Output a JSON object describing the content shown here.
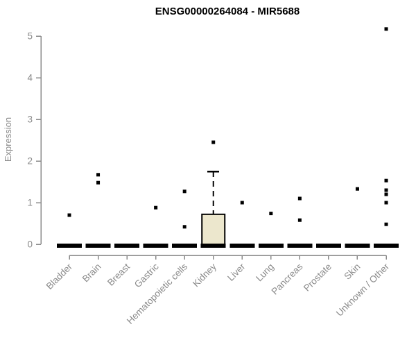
{
  "chart_data": {
    "type": "boxplot",
    "title": "ENSG00000264084 - MIR5688",
    "ylabel": "Expression",
    "xlabel": "",
    "ylim": [
      0,
      5
    ],
    "yticks": [
      0,
      1,
      2,
      3,
      4,
      5
    ],
    "categories": [
      "Bladder",
      "Brain",
      "Breast",
      "Gastric",
      "Hematopoietic cells",
      "Kidney",
      "Liver",
      "Lung",
      "Pancreas",
      "Prostate",
      "Skin",
      "Unknown / Other"
    ],
    "boxes": [
      {
        "category": "Bladder",
        "q1": 0,
        "median": 0,
        "q3": 0,
        "whisker_low": 0,
        "whisker_high": 0,
        "outliers": [
          0.7
        ]
      },
      {
        "category": "Brain",
        "q1": 0,
        "median": 0,
        "q3": 0,
        "whisker_low": 0,
        "whisker_high": 0,
        "outliers": [
          1.67,
          1.48
        ]
      },
      {
        "category": "Breast",
        "q1": 0,
        "median": 0,
        "q3": 0,
        "whisker_low": 0,
        "whisker_high": 0,
        "outliers": []
      },
      {
        "category": "Gastric",
        "q1": 0,
        "median": 0,
        "q3": 0,
        "whisker_low": 0,
        "whisker_high": 0,
        "outliers": [
          0.88
        ]
      },
      {
        "category": "Hematopoietic cells",
        "q1": 0,
        "median": 0,
        "q3": 0,
        "whisker_low": 0,
        "whisker_high": 0,
        "outliers": [
          1.27,
          0.42
        ]
      },
      {
        "category": "Kidney",
        "q1": 0,
        "median": 0,
        "q3": 0.72,
        "whisker_low": 0,
        "whisker_high": 1.75,
        "outliers": [
          2.45
        ]
      },
      {
        "category": "Liver",
        "q1": 0,
        "median": 0,
        "q3": 0,
        "whisker_low": 0,
        "whisker_high": 0,
        "outliers": [
          1.0
        ]
      },
      {
        "category": "Lung",
        "q1": 0,
        "median": 0,
        "q3": 0,
        "whisker_low": 0,
        "whisker_high": 0,
        "outliers": [
          0.74
        ]
      },
      {
        "category": "Pancreas",
        "q1": 0,
        "median": 0,
        "q3": 0,
        "whisker_low": 0,
        "whisker_high": 0,
        "outliers": [
          1.1,
          0.58
        ]
      },
      {
        "category": "Prostate",
        "q1": 0,
        "median": 0,
        "q3": 0,
        "whisker_low": 0,
        "whisker_high": 0,
        "outliers": []
      },
      {
        "category": "Skin",
        "q1": 0,
        "median": 0,
        "q3": 0,
        "whisker_low": 0,
        "whisker_high": 0,
        "outliers": [
          1.33
        ]
      },
      {
        "category": "Unknown / Other",
        "q1": 0,
        "median": 0,
        "q3": 0,
        "whisker_low": 0,
        "whisker_high": 0,
        "outliers": [
          5.17,
          1.53,
          1.3,
          1.2,
          1.0,
          0.48
        ]
      }
    ],
    "grid": false,
    "legend": null,
    "colors": {
      "background": "#ffffff",
      "box_fill": "#ECE7CD",
      "box_stroke": "#000000",
      "point": "#000000",
      "bar": "#000000",
      "axis": "#8a8a8a",
      "tick_text": "#8a8a8a",
      "title_text": "#000000"
    }
  }
}
